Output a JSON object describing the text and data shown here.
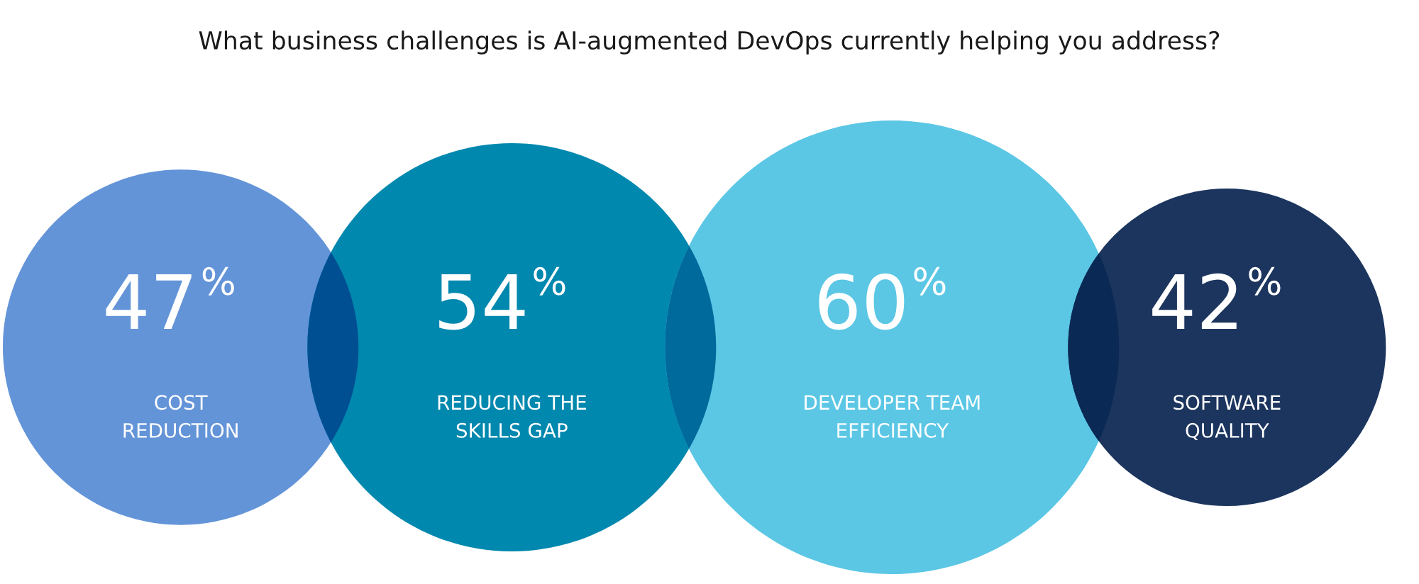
{
  "chart_data": {
    "type": "other",
    "title": "What business challenges is AI-augmented DevOps currently helping you address?",
    "categories": [
      "COST\nREDUCTION",
      "REDUCING THE\nSKILLS GAP",
      "DEVELOPER TEAM\nEFFICIENCY",
      "SOFTWARE\nQUALITY"
    ],
    "values": [
      47,
      54,
      60,
      42
    ],
    "value_labels": [
      "47%",
      "54%",
      "60%",
      "42%"
    ],
    "colors": [
      "#6394d8",
      "#0088ae",
      "#5bc7e5",
      "#1c355e"
    ],
    "data_labels": true
  }
}
